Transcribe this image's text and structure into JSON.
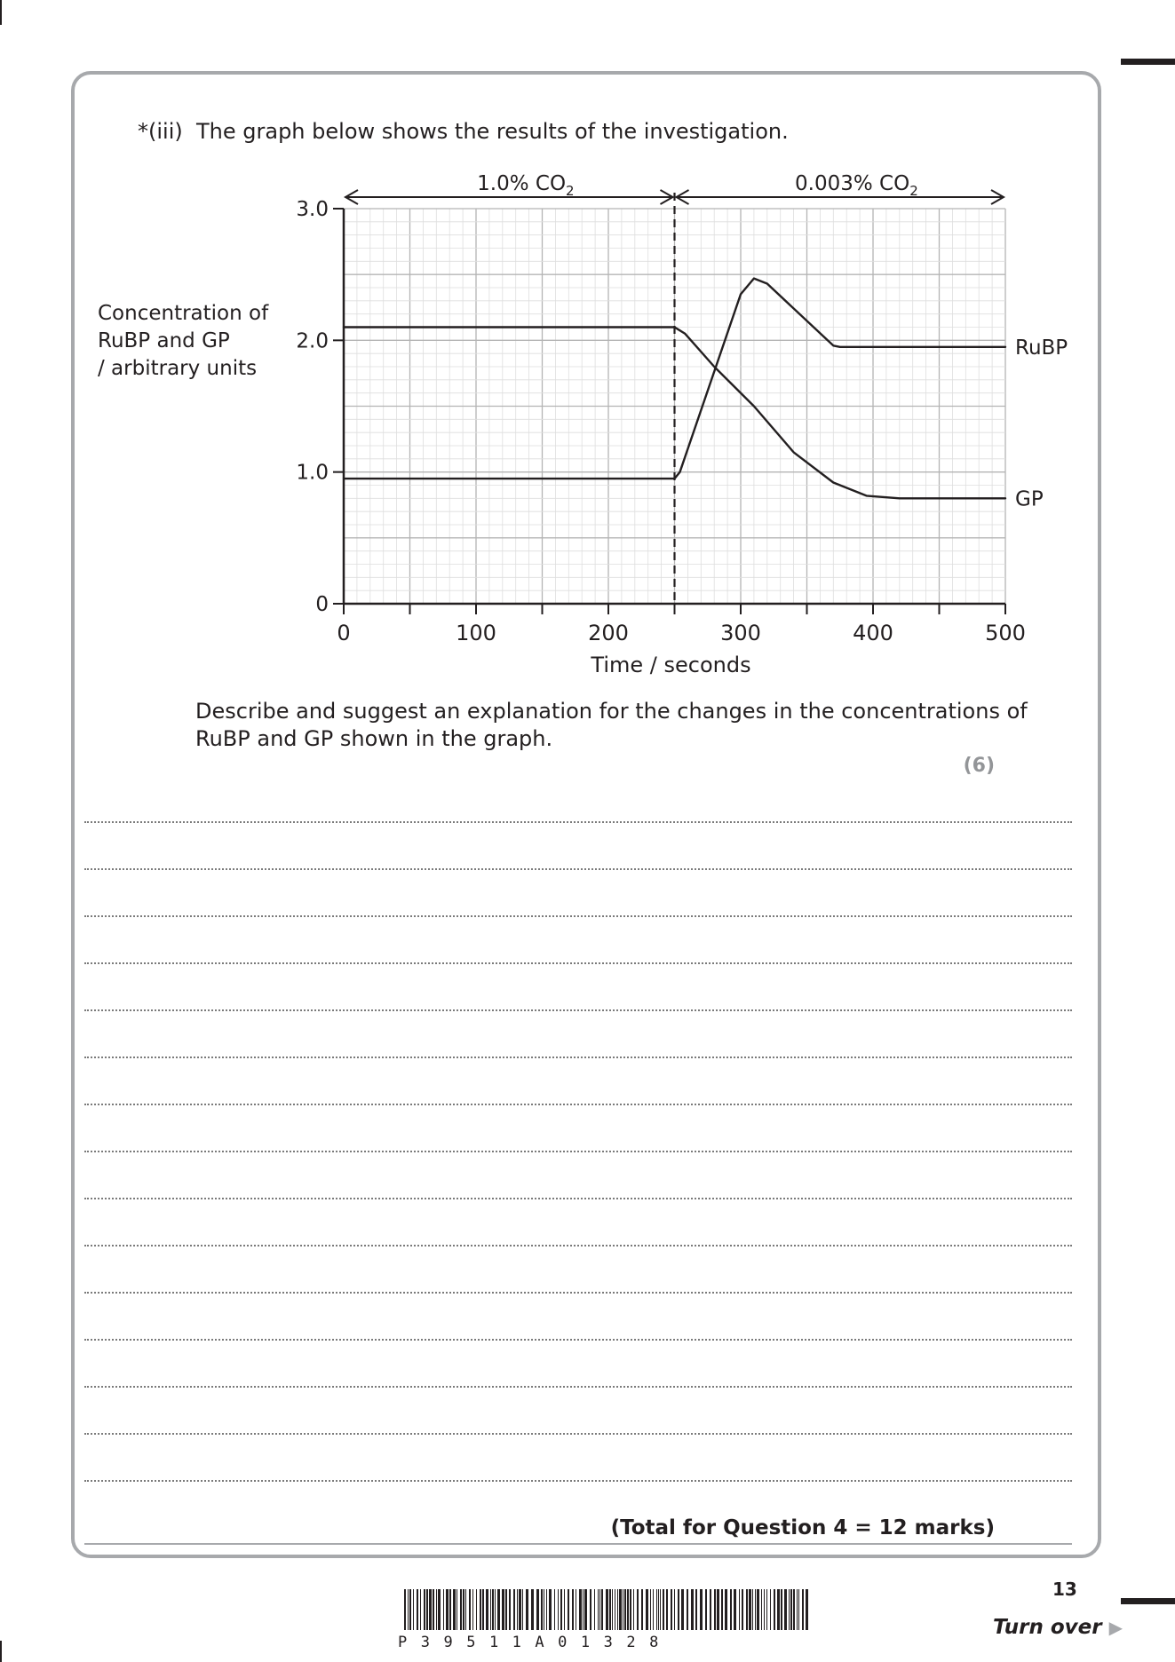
{
  "question": {
    "number": "*(iii)",
    "text": "The graph below shows the results of the investigation."
  },
  "chart_data": {
    "type": "line",
    "ylabel": "Concentration of RuBP and GP / arbitrary units",
    "ylabel_lines": [
      "Concentration of",
      "RuBP and GP",
      "/ arbitrary units"
    ],
    "xlabel": "Time / seconds",
    "xlim": [
      0,
      500
    ],
    "ylim": [
      0,
      3.0
    ],
    "x_ticks": [
      "0",
      "100",
      "200",
      "300",
      "400",
      "500"
    ],
    "y_ticks": [
      "0",
      "1.0",
      "2.0",
      "3.0"
    ],
    "grid": true,
    "regions": [
      {
        "label": "1.0% CO2",
        "label_main": "1.0% CO",
        "label_sub": "2",
        "from": 0,
        "to": 250
      },
      {
        "label": "0.003% CO2",
        "label_main": "0.003% CO",
        "label_sub": "2",
        "from": 250,
        "to": 500
      }
    ],
    "divider_x": 250,
    "series": [
      {
        "name": "RuBP",
        "points": [
          [
            0,
            0.95
          ],
          [
            250,
            0.95
          ],
          [
            254,
            1.0
          ],
          [
            300,
            2.35
          ],
          [
            310,
            2.47
          ],
          [
            320,
            2.43
          ],
          [
            370,
            1.96
          ],
          [
            375,
            1.95
          ],
          [
            500,
            1.95
          ]
        ]
      },
      {
        "name": "GP",
        "points": [
          [
            0,
            2.1
          ],
          [
            250,
            2.1
          ],
          [
            258,
            2.05
          ],
          [
            280,
            1.8
          ],
          [
            310,
            1.5
          ],
          [
            340,
            1.15
          ],
          [
            370,
            0.92
          ],
          [
            395,
            0.82
          ],
          [
            420,
            0.8
          ],
          [
            500,
            0.8
          ]
        ]
      }
    ]
  },
  "prompt": {
    "line1": "Describe and suggest an explanation for the changes in the concentrations of",
    "line2": "RuBP and GP shown in the graph.",
    "marks": "(6)"
  },
  "total": "(Total for Question 4 = 12 marks)",
  "footer": {
    "page_number": "13",
    "turn_over": "Turn over",
    "barcode_text": "P39511A01328"
  }
}
